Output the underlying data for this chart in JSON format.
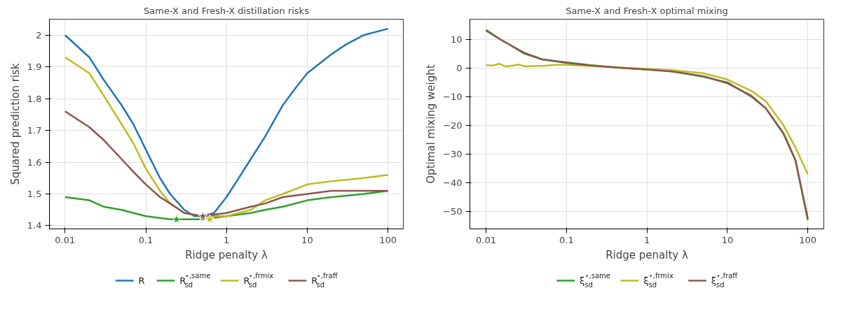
{
  "chart_data": [
    {
      "type": "line",
      "title": "Same-X and Fresh-X distillation risks",
      "xlabel": "Ridge penalty λ",
      "ylabel": "Squared prediction risk",
      "log": "x",
      "grid": true,
      "legend": "bottom",
      "marker": "none",
      "line_style": "solid",
      "xlim": [
        0.0064,
        155
      ],
      "xticks": [
        0.01,
        0.1,
        1,
        10,
        100
      ],
      "ylim": [
        1.39,
        2.05
      ],
      "yticks": [
        1.4,
        1.5,
        1.6,
        1.7,
        1.8,
        1.9,
        2.0
      ],
      "series": [
        {
          "name": "R",
          "color": "#1f77b4",
          "x": [
            0.01,
            0.02,
            0.03,
            0.05,
            0.07,
            0.1,
            0.15,
            0.2,
            0.3,
            0.4,
            0.5,
            0.7,
            1,
            1.5,
            2,
            3,
            5,
            7,
            10,
            20,
            30,
            50,
            100
          ],
          "values": [
            2.0,
            1.93,
            1.86,
            1.78,
            1.72,
            1.64,
            1.55,
            1.5,
            1.45,
            1.43,
            1.43,
            1.44,
            1.49,
            1.56,
            1.61,
            1.68,
            1.78,
            1.83,
            1.88,
            1.94,
            1.97,
            2.0,
            2.02
          ]
        },
        {
          "name": "R$^{⋆,same}$$_{sd}$",
          "color": "#2ca02c",
          "x": [
            0.01,
            0.02,
            0.03,
            0.05,
            0.1,
            0.2,
            0.5,
            1,
            2,
            3,
            5,
            10,
            20,
            50,
            100
          ],
          "values": [
            1.49,
            1.48,
            1.46,
            1.45,
            1.43,
            1.42,
            1.42,
            1.43,
            1.44,
            1.45,
            1.46,
            1.48,
            1.49,
            1.5,
            1.51
          ]
        },
        {
          "name": "R$^{⋆,frmix}$$_{sd}$",
          "color": "#bcbd22",
          "x": [
            0.01,
            0.02,
            0.03,
            0.05,
            0.07,
            0.1,
            0.15,
            0.2,
            0.3,
            0.5,
            1,
            2,
            3,
            5,
            10,
            20,
            50,
            100
          ],
          "values": [
            1.93,
            1.88,
            1.81,
            1.72,
            1.66,
            1.58,
            1.51,
            1.47,
            1.44,
            1.43,
            1.43,
            1.45,
            1.48,
            1.5,
            1.53,
            1.54,
            1.55,
            1.56
          ]
        },
        {
          "name": "R$^{⋆,fraff}$$_{sd}$",
          "color": "#8c564b",
          "x": [
            0.01,
            0.02,
            0.03,
            0.05,
            0.07,
            0.1,
            0.15,
            0.2,
            0.3,
            0.5,
            1,
            2,
            3,
            5,
            10,
            20,
            50,
            100
          ],
          "values": [
            1.76,
            1.71,
            1.67,
            1.61,
            1.57,
            1.53,
            1.49,
            1.47,
            1.44,
            1.43,
            1.44,
            1.46,
            1.47,
            1.49,
            1.5,
            1.51,
            1.51,
            1.51
          ]
        },
        {
          "type": "scatter",
          "marker": "star",
          "color": "#2ca02c",
          "x": [
            0.24
          ],
          "values": [
            1.42
          ]
        },
        {
          "type": "scatter",
          "marker": "star",
          "color": "#8c564b",
          "x": [
            0.51
          ],
          "values": [
            1.43
          ]
        },
        {
          "type": "scatter",
          "marker": "star",
          "color": "#bcbd22",
          "x": [
            0.62
          ],
          "values": [
            1.42
          ]
        }
      ]
    },
    {
      "type": "line",
      "title": "Same-X and Fresh-X optimal mixing",
      "xlabel": "Ridge penalty λ",
      "ylabel": "Optimal mixing weight",
      "log": "x",
      "grid": true,
      "legend": "bottom",
      "marker": "none",
      "line_style": "solid",
      "xlim": [
        0.0063,
        158
      ],
      "xticks": [
        0.01,
        0.1,
        1,
        10,
        100
      ],
      "ylim": [
        -56,
        17
      ],
      "yticks": [
        -50,
        -40,
        -30,
        -20,
        -10,
        0,
        10
      ],
      "series": [
        {
          "name": "ξ$^{⋆,same}$$_{sd}$",
          "color": "#2ca02c",
          "x": [
            0.01,
            0.015,
            0.02,
            0.03,
            0.05,
            0.1,
            0.2,
            0.5,
            1,
            2,
            5,
            10,
            20,
            30,
            50,
            70,
            100
          ],
          "values": [
            13,
            10,
            8,
            5,
            3,
            2,
            1,
            0,
            -0.5,
            -1,
            -3,
            -5,
            -10,
            -14,
            -23,
            -32,
            -53
          ]
        },
        {
          "name": "ξ$^{⋆,frmix}$$_{sd}$",
          "color": "#bcbd22",
          "x": [
            0.01,
            0.0122,
            0.0146,
            0.0176,
            0.0211,
            0.0254,
            0.0307,
            0.0387,
            0.0542,
            0.0758,
            0.1,
            1,
            2,
            5,
            10,
            20,
            30,
            50,
            70,
            100
          ],
          "values": [
            1.0,
            0.9,
            1.5,
            0.5,
            0.8,
            1.2,
            0.6,
            0.7,
            0.8,
            1.1,
            1.1,
            -0.3,
            -0.7,
            -1.8,
            -4,
            -8,
            -11.5,
            -20,
            -27.6,
            -37
          ]
        },
        {
          "name": "ξ$^{⋆,fraff}$$_{sd}$",
          "color": "#8c564b",
          "x": [
            0.01,
            0.015,
            0.02,
            0.03,
            0.05,
            0.1,
            0.2,
            0.5,
            1,
            2,
            5,
            10,
            20,
            30,
            50,
            70,
            100
          ],
          "values": [
            13.3,
            10,
            8,
            5.3,
            3,
            1.8,
            0.9,
            0,
            -0.5,
            -1.2,
            -2.8,
            -5.3,
            -9.7,
            -14,
            -22.8,
            -32,
            -52.3
          ]
        }
      ]
    }
  ]
}
